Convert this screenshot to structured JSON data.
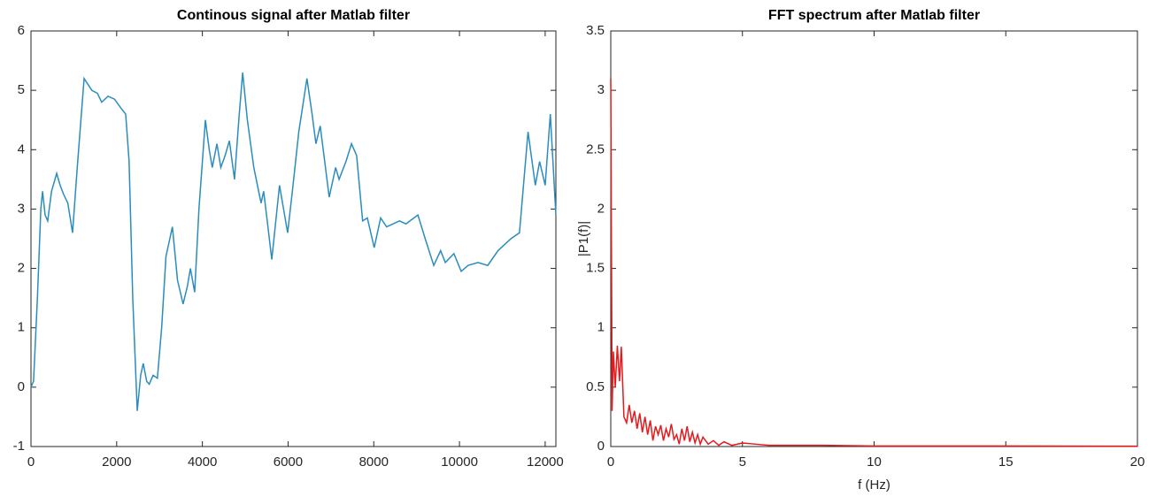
{
  "chart_data": [
    {
      "type": "line",
      "title": "Continous signal after Matlab filter",
      "xlim": [
        0,
        12250
      ],
      "xticks": [
        0,
        2000,
        4000,
        6000,
        8000,
        10000,
        12000
      ],
      "ylim": [
        -1,
        6
      ],
      "yticks": [
        -1,
        0,
        1,
        2,
        3,
        4,
        5,
        6
      ],
      "series": [
        {
          "color": "#2b8cbe",
          "x": [
            0,
            60,
            150,
            230,
            270,
            330,
            390,
            480,
            600,
            680,
            760,
            860,
            970,
            1080,
            1240,
            1330,
            1420,
            1550,
            1650,
            1800,
            1950,
            2100,
            2210,
            2290,
            2375,
            2480,
            2560,
            2620,
            2700,
            2760,
            2850,
            2950,
            3050,
            3150,
            3300,
            3420,
            3550,
            3650,
            3720,
            3820,
            3920,
            4070,
            4160,
            4230,
            4340,
            4430,
            4530,
            4630,
            4750,
            4850,
            4940,
            5050,
            5200,
            5370,
            5430,
            5530,
            5620,
            5800,
            5990,
            6100,
            6250,
            6440,
            6560,
            6650,
            6750,
            6960,
            7110,
            7190,
            7350,
            7480,
            7600,
            7740,
            7850,
            8010,
            8160,
            8300,
            8450,
            8600,
            8750,
            9030,
            9200,
            9400,
            9560,
            9670,
            9870,
            10040,
            10200,
            10430,
            10660,
            10900,
            11200,
            11400,
            11600,
            11770,
            11870,
            12000,
            12120,
            12250
          ],
          "values": [
            0,
            0.1,
            1.5,
            3.0,
            3.3,
            2.9,
            2.8,
            3.3,
            3.6,
            3.4,
            3.25,
            3.1,
            2.6,
            3.7,
            5.2,
            5.1,
            5.0,
            4.95,
            4.8,
            4.9,
            4.85,
            4.7,
            4.6,
            3.8,
            1.5,
            -0.4,
            0.2,
            0.4,
            0.1,
            0.05,
            0.2,
            0.15,
            1.0,
            2.2,
            2.7,
            1.8,
            1.4,
            1.7,
            2.0,
            1.6,
            3.0,
            4.5,
            4.0,
            3.7,
            4.1,
            3.7,
            3.9,
            4.15,
            3.5,
            4.5,
            5.3,
            4.5,
            3.7,
            3.1,
            3.3,
            2.7,
            2.15,
            3.4,
            2.6,
            3.3,
            4.3,
            5.2,
            4.6,
            4.1,
            4.4,
            3.2,
            3.7,
            3.5,
            3.8,
            4.1,
            3.9,
            2.8,
            2.85,
            2.35,
            2.85,
            2.7,
            2.75,
            2.8,
            2.75,
            2.9,
            2.5,
            2.05,
            2.3,
            2.1,
            2.25,
            1.95,
            2.05,
            2.1,
            2.05,
            2.3,
            2.5,
            2.6,
            4.3,
            3.4,
            3.8,
            3.4,
            4.6,
            2.9
          ]
        }
      ]
    },
    {
      "type": "line",
      "title": "FFT spectrum after Matlab filter",
      "xlabel": "f (Hz)",
      "ylabel": "|P1(f)|",
      "xlim": [
        0,
        20
      ],
      "xticks": [
        0,
        5,
        10,
        15,
        20
      ],
      "ylim": [
        0,
        3.5
      ],
      "yticks": [
        0,
        0.5,
        1,
        1.5,
        2,
        2.5,
        3,
        3.5
      ],
      "series": [
        {
          "color": "#e41a1c",
          "x": [
            0,
            0.05,
            0.1,
            0.17,
            0.25,
            0.33,
            0.4,
            0.5,
            0.6,
            0.7,
            0.8,
            0.9,
            1.0,
            1.1,
            1.2,
            1.3,
            1.4,
            1.5,
            1.6,
            1.7,
            1.8,
            1.9,
            2.0,
            2.1,
            2.2,
            2.3,
            2.4,
            2.5,
            2.6,
            2.7,
            2.8,
            2.9,
            3.0,
            3.1,
            3.2,
            3.3,
            3.4,
            3.5,
            3.7,
            3.9,
            4.1,
            4.3,
            4.6,
            5.0,
            5.5,
            6,
            8,
            10,
            15,
            20
          ],
          "values": [
            3.1,
            0.3,
            0.8,
            0.5,
            0.85,
            0.55,
            0.84,
            0.25,
            0.2,
            0.35,
            0.2,
            0.3,
            0.15,
            0.28,
            0.12,
            0.25,
            0.1,
            0.22,
            0.05,
            0.17,
            0.1,
            0.18,
            0.05,
            0.15,
            0.08,
            0.19,
            0.06,
            0.1,
            0.02,
            0.15,
            0.05,
            0.17,
            0.04,
            0.12,
            0.03,
            0.1,
            0.02,
            0.08,
            0.02,
            0.05,
            0.01,
            0.04,
            0.01,
            0.03,
            0.02,
            0.01,
            0.01,
            0.005,
            0.005,
            0.003
          ]
        }
      ]
    }
  ]
}
